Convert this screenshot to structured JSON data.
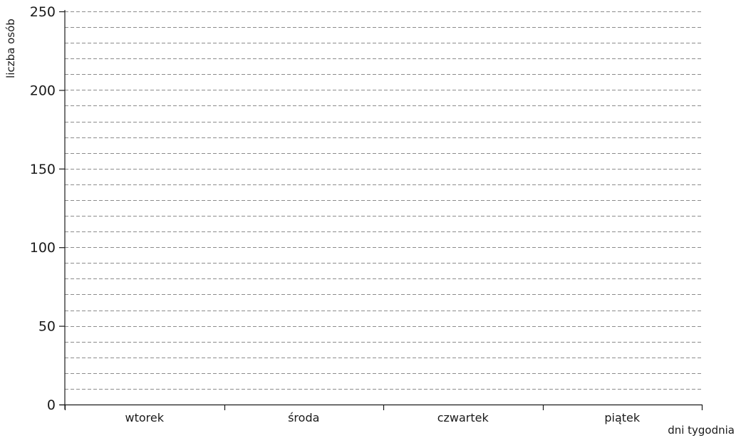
{
  "chart_data": {
    "type": "bar",
    "title": "",
    "xlabel": "dni tygodnia",
    "ylabel": "liczba osób",
    "categories": [
      "wtorek",
      "środa",
      "czwartek",
      "piątek"
    ],
    "series": [],
    "ylim": [
      0,
      250
    ],
    "y_major_ticks": [
      "0",
      "50",
      "100",
      "150",
      "200",
      "250"
    ],
    "y_grid_step": 10,
    "grid": true,
    "grid_style": "dashed"
  }
}
